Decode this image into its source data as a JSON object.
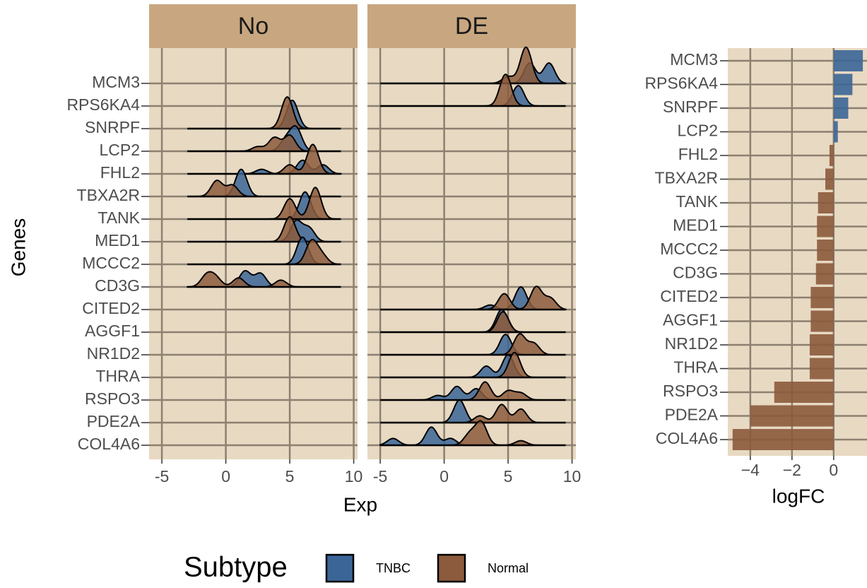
{
  "chart_data": [
    {
      "type": "ridgeline",
      "facets": [
        "No",
        "DE"
      ],
      "categories": [
        "MCM3",
        "RPS6KA4",
        "SNRPF",
        "LCP2",
        "FHL2",
        "TBXA2R",
        "TANK",
        "MED1",
        "MCCC2",
        "CD3G",
        "CITED2",
        "AGGF1",
        "NR1D2",
        "THRA",
        "RSPO3",
        "PDE2A",
        "COL4A6"
      ],
      "ylabel": "Genes",
      "xlabel": "Exp",
      "xlim": [
        -6,
        10.3
      ],
      "xticks": [
        -5,
        0,
        5,
        10
      ],
      "bandwidth": 0.45,
      "legend_title": "Subtype",
      "series": [
        {
          "name": "TNBC",
          "color": "#3b6597"
        },
        {
          "name": "Normal",
          "color": "#8c5a3c"
        }
      ],
      "ridges": [
        {
          "facet": 1,
          "range": [
            -5,
            9.5
          ],
          "peaks": [
            [
              [
                6.7,
                0.9
              ],
              [
                8.2,
                0.9
              ]
            ],
            [
              [
                6.4,
                1.6
              ],
              [
                5,
                0.3
              ]
            ]
          ]
        },
        {
          "facet": 1,
          "range": [
            -5,
            9.5
          ],
          "peaks": [
            [
              [
                5.8,
                0.9
              ]
            ],
            [
              [
                4.8,
                1.4
              ]
            ]
          ]
        },
        {
          "facet": 0,
          "range": [
            -3,
            9
          ],
          "peaks": [
            [
              [
                5.2,
                1.25
              ]
            ],
            [
              [
                4.8,
                1.4
              ]
            ]
          ]
        },
        {
          "facet": 0,
          "range": [
            -3,
            9
          ],
          "peaks": [
            [
              [
                5.5,
                1.0
              ],
              [
                4.7,
                0.5
              ]
            ],
            [
              [
                3.8,
                0.6
              ],
              [
                5,
                0.7
              ],
              [
                2.5,
                0.2
              ]
            ]
          ]
        },
        {
          "facet": 0,
          "range": [
            -3,
            9
          ],
          "peaks": [
            [
              [
                6,
                0.6
              ],
              [
                7.6,
                0.4
              ],
              [
                2.8,
                0.2
              ]
            ],
            [
              [
                6.8,
                1.3
              ],
              [
                5,
                0.4
              ]
            ]
          ]
        },
        {
          "facet": 0,
          "range": [
            -3,
            9
          ],
          "peaks": [
            [
              [
                1.2,
                1.2
              ]
            ],
            [
              [
                -0.7,
                0.7
              ],
              [
                0.5,
                0.5
              ]
            ]
          ]
        },
        {
          "facet": 0,
          "range": [
            -3,
            9
          ],
          "peaks": [
            [
              [
                6.2,
                1.2
              ]
            ],
            [
              [
                7,
                1.4
              ],
              [
                5,
                0.9
              ]
            ]
          ]
        },
        {
          "facet": 0,
          "range": [
            -3,
            9
          ],
          "peaks": [
            [
              [
                5.5,
                0.9
              ],
              [
                6.5,
                0.6
              ]
            ],
            [
              [
                5,
                1.1
              ]
            ]
          ]
        },
        {
          "facet": 0,
          "range": [
            -3,
            9
          ],
          "peaks": [
            [
              [
                6,
                1.2
              ]
            ],
            [
              [
                6.7,
                1.0
              ],
              [
                7.5,
                0.4
              ]
            ]
          ]
        },
        {
          "facet": 0,
          "range": [
            -3,
            9
          ],
          "peaks": [
            [
              [
                1.5,
                0.7
              ],
              [
                2.7,
                0.6
              ]
            ],
            [
              [
                -1.5,
                0.5
              ],
              [
                -0.8,
                0.4
              ],
              [
                1,
                0.4
              ],
              [
                4.3,
                0.3
              ]
            ]
          ]
        },
        {
          "facet": 1,
          "range": [
            -5,
            9.5
          ],
          "peaks": [
            [
              [
                6,
                1.0
              ],
              [
                3.6,
                0.2
              ]
            ],
            [
              [
                7.2,
                1.0
              ],
              [
                8.3,
                0.5
              ],
              [
                4.7,
                0.7
              ]
            ]
          ]
        },
        {
          "facet": 1,
          "range": [
            -5,
            9.5
          ],
          "peaks": [
            [
              [
                4.5,
                1.0
              ]
            ],
            [
              [
                4.6,
                0.9
              ]
            ]
          ]
        },
        {
          "facet": 1,
          "range": [
            -5,
            9.5
          ],
          "peaks": [
            [
              [
                4.8,
                0.9
              ]
            ],
            [
              [
                5.9,
                0.9
              ],
              [
                7,
                0.5
              ]
            ]
          ]
        },
        {
          "facet": 1,
          "range": [
            -5,
            9.5
          ],
          "peaks": [
            [
              [
                3.3,
                0.5
              ],
              [
                5,
                1.0
              ]
            ],
            [
              [
                5.5,
                1.1
              ]
            ]
          ]
        },
        {
          "facet": 1,
          "range": [
            -5,
            9.5
          ],
          "peaks": [
            [
              [
                1,
                0.6
              ],
              [
                2.5,
                0.5
              ],
              [
                -0.5,
                0.2
              ]
            ],
            [
              [
                3.2,
                0.8
              ],
              [
                5,
                0.4
              ],
              [
                6,
                0.3
              ]
            ]
          ]
        },
        {
          "facet": 1,
          "range": [
            -5,
            9.5
          ],
          "peaks": [
            [
              [
                1.2,
                1.0
              ]
            ],
            [
              [
                4.5,
                0.8
              ],
              [
                6,
                0.6
              ],
              [
                2.8,
                0.3
              ]
            ]
          ]
        },
        {
          "facet": 1,
          "range": [
            -5,
            9.5
          ],
          "peaks": [
            [
              [
                -1,
                0.8
              ],
              [
                -4,
                0.3
              ],
              [
                0.5,
                0.3
              ]
            ],
            [
              [
                2.9,
                1.0
              ],
              [
                2,
                0.5
              ],
              [
                6,
                0.2
              ]
            ]
          ]
        }
      ]
    },
    {
      "type": "barh",
      "categories": [
        "MCM3",
        "RPS6KA4",
        "SNRPF",
        "LCP2",
        "FHL2",
        "TBXA2R",
        "TANK",
        "MED1",
        "MCCC2",
        "CD3G",
        "CITED2",
        "AGGF1",
        "NR1D2",
        "THRA",
        "RSPO3",
        "PDE2A",
        "COL4A6"
      ],
      "values": [
        1.4,
        0.9,
        0.7,
        0.2,
        -0.2,
        -0.4,
        -0.75,
        -0.8,
        -0.8,
        -0.85,
        -1.1,
        -1.1,
        -1.15,
        -1.15,
        -2.85,
        -4.0,
        -4.85
      ],
      "xlabel": "logFC",
      "xlim": [
        -5.08,
        1.6
      ],
      "xticks": [
        {
          "value": -4,
          "label": "−4"
        },
        {
          "value": -2,
          "label": "−2"
        },
        0
      ],
      "positive_color": "#3b6597",
      "negative_color": "#8c5a3c"
    }
  ]
}
